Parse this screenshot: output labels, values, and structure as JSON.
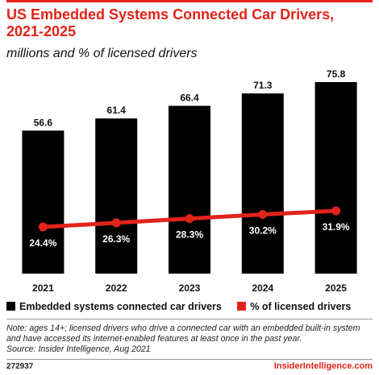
{
  "title": "US Embedded Systems Connected Car Drivers, 2021-2025",
  "subtitle": "millions and % of licensed drivers",
  "chart_data": {
    "type": "bar",
    "categories": [
      "2021",
      "2022",
      "2023",
      "2024",
      "2025"
    ],
    "series": [
      {
        "name": "Embedded systems connected car drivers",
        "type": "bar",
        "values": [
          56.6,
          61.4,
          66.4,
          71.3,
          75.8
        ],
        "labels": [
          "56.6",
          "61.4",
          "66.4",
          "71.3",
          "75.8"
        ],
        "color": "#000000"
      },
      {
        "name": "% of licensed drivers",
        "type": "line",
        "values": [
          24.4,
          26.3,
          28.3,
          30.2,
          31.9
        ],
        "labels": [
          "24.4%",
          "26.3%",
          "28.3%",
          "30.2%",
          "31.9%"
        ],
        "color": "#e2231a"
      }
    ],
    "legend_position": "bottom",
    "grid": false
  },
  "note": "Note: ages 14+; licensed drivers who drive a connected car with an embedded built-in system and have accessed its internet-enabled features at least once in the past year.",
  "source": "Source: Insider Intelligence, Aug 2021",
  "chart_id": "272937",
  "brand": "InsiderIntelligence.com"
}
